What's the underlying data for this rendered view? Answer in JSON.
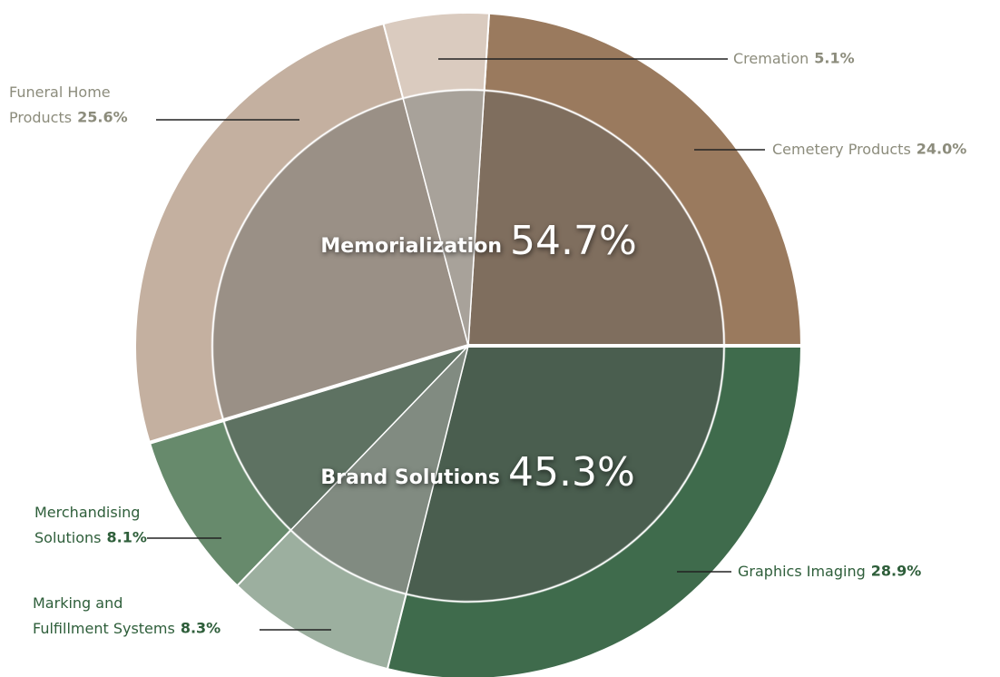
{
  "chart_data": {
    "type": "pie",
    "outer": {
      "categories": [
        "Cemetery Products",
        "Graphics Imaging",
        "Marking and Fulfillment Systems",
        "Merchandising Solutions",
        "Funeral Home Products",
        "Cremation"
      ],
      "values": [
        24.0,
        28.9,
        8.3,
        8.1,
        25.6,
        5.1
      ],
      "value_labels": [
        "24.0%",
        "28.9%",
        "8.3%",
        "8.1%",
        "25.6%",
        "5.1%"
      ],
      "colors": [
        "#9a7a5e",
        "#3f6b4c",
        "#9caf9f",
        "#678a6c",
        "#c4b0a0",
        "#dacbbf"
      ],
      "inner_colors": [
        "#7f6e5e",
        "#4a5e4f",
        "#818b81",
        "#5e7262",
        "#9a9086",
        "#a8a29a"
      ]
    },
    "inner": {
      "categories": [
        "Brand Solutions",
        "Memorialization"
      ],
      "values": [
        45.3,
        54.7
      ],
      "value_labels": [
        "45.3%",
        "54.7%"
      ]
    }
  }
}
